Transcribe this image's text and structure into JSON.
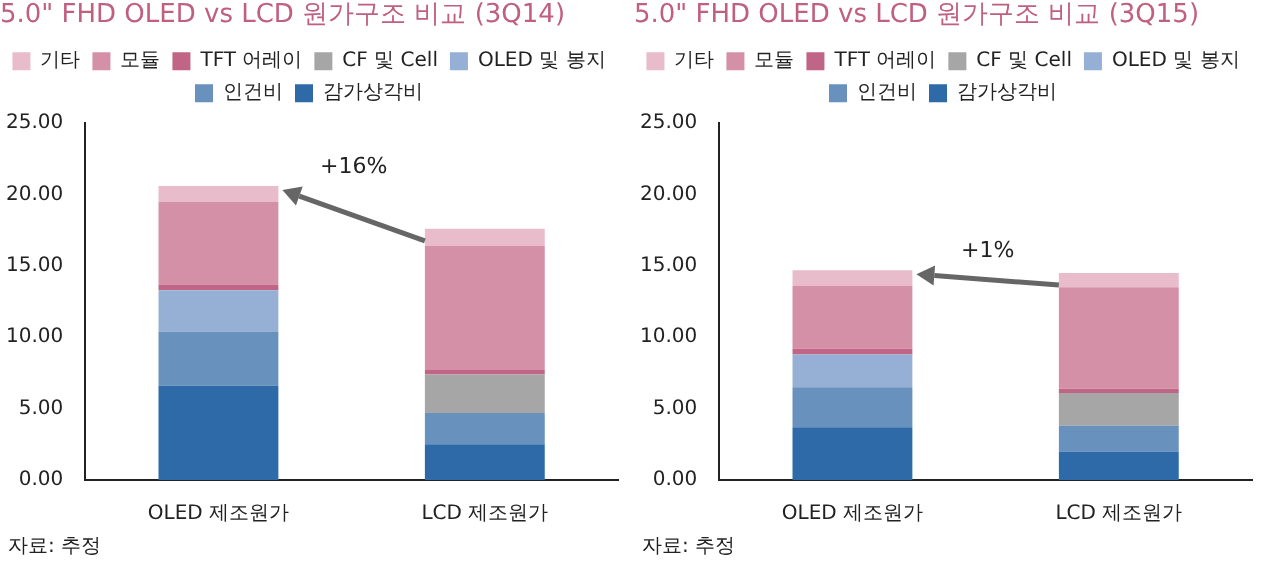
{
  "chart_data": [
    {
      "type": "bar",
      "title": "5.0\" FHD OLED vs LCD 원가구조 비교 (3Q14)",
      "categories": [
        "OLED 제조원가",
        "LCD 제조원가"
      ],
      "stacked": true,
      "legend": "top",
      "ylim": [
        0,
        25
      ],
      "yticks": [
        {
          "value": 0,
          "label": "0.00"
        },
        {
          "value": 5,
          "label": "5.00"
        },
        {
          "value": 10,
          "label": "10.00"
        },
        {
          "value": 15,
          "label": "15.00"
        },
        {
          "value": 20,
          "label": "20.00"
        },
        {
          "value": 25,
          "label": "25.00"
        }
      ],
      "annotations": [
        "+16%",
        "자료: 추정"
      ],
      "series": [
        {
          "name": "감가상각비",
          "color": "#2e6aa8",
          "values": [
            6.6,
            2.5
          ]
        },
        {
          "name": "인건비",
          "color": "#6891bd",
          "values": [
            3.8,
            2.2
          ]
        },
        {
          "name": "OLED 및 봉지",
          "color": "#95b0d4",
          "values": [
            2.9,
            0
          ]
        },
        {
          "name": "CF 및 Cell",
          "color": "#a6a6a6",
          "values": [
            0,
            2.7
          ]
        },
        {
          "name": "TFT 어레이",
          "color": "#c06585",
          "values": [
            0.4,
            0.3
          ]
        },
        {
          "name": "모듈",
          "color": "#d490a6",
          "values": [
            5.8,
            8.7
          ]
        },
        {
          "name": "기타",
          "color": "#e8bccb",
          "values": [
            1.1,
            1.2
          ]
        }
      ]
    },
    {
      "type": "bar",
      "title": "5.0\" FHD OLED vs LCD 원가구조 비교 (3Q15)",
      "categories": [
        "OLED 제조원가",
        "LCD 제조원가"
      ],
      "stacked": true,
      "legend": "top",
      "ylim": [
        0,
        25
      ],
      "yticks": [
        {
          "value": 0,
          "label": "0.00"
        },
        {
          "value": 5,
          "label": "5.00"
        },
        {
          "value": 10,
          "label": "10.00"
        },
        {
          "value": 15,
          "label": "15.00"
        },
        {
          "value": 20,
          "label": "20.00"
        },
        {
          "value": 25,
          "label": "25.00"
        }
      ],
      "annotations": [
        "+1%",
        "자료: 추정"
      ],
      "series": [
        {
          "name": "감가상각비",
          "color": "#2e6aa8",
          "values": [
            3.7,
            2.0
          ]
        },
        {
          "name": "인건비",
          "color": "#6891bd",
          "values": [
            2.8,
            1.8
          ]
        },
        {
          "name": "OLED 및 봉지",
          "color": "#95b0d4",
          "values": [
            2.3,
            0
          ]
        },
        {
          "name": "CF 및 Cell",
          "color": "#a6a6a6",
          "values": [
            0,
            2.3
          ]
        },
        {
          "name": "TFT 어레이",
          "color": "#c06585",
          "values": [
            0.4,
            0.3
          ]
        },
        {
          "name": "모듈",
          "color": "#d490a6",
          "values": [
            4.4,
            7.1
          ]
        },
        {
          "name": "기타",
          "color": "#e8bccb",
          "values": [
            1.1,
            1.0
          ]
        }
      ]
    }
  ]
}
